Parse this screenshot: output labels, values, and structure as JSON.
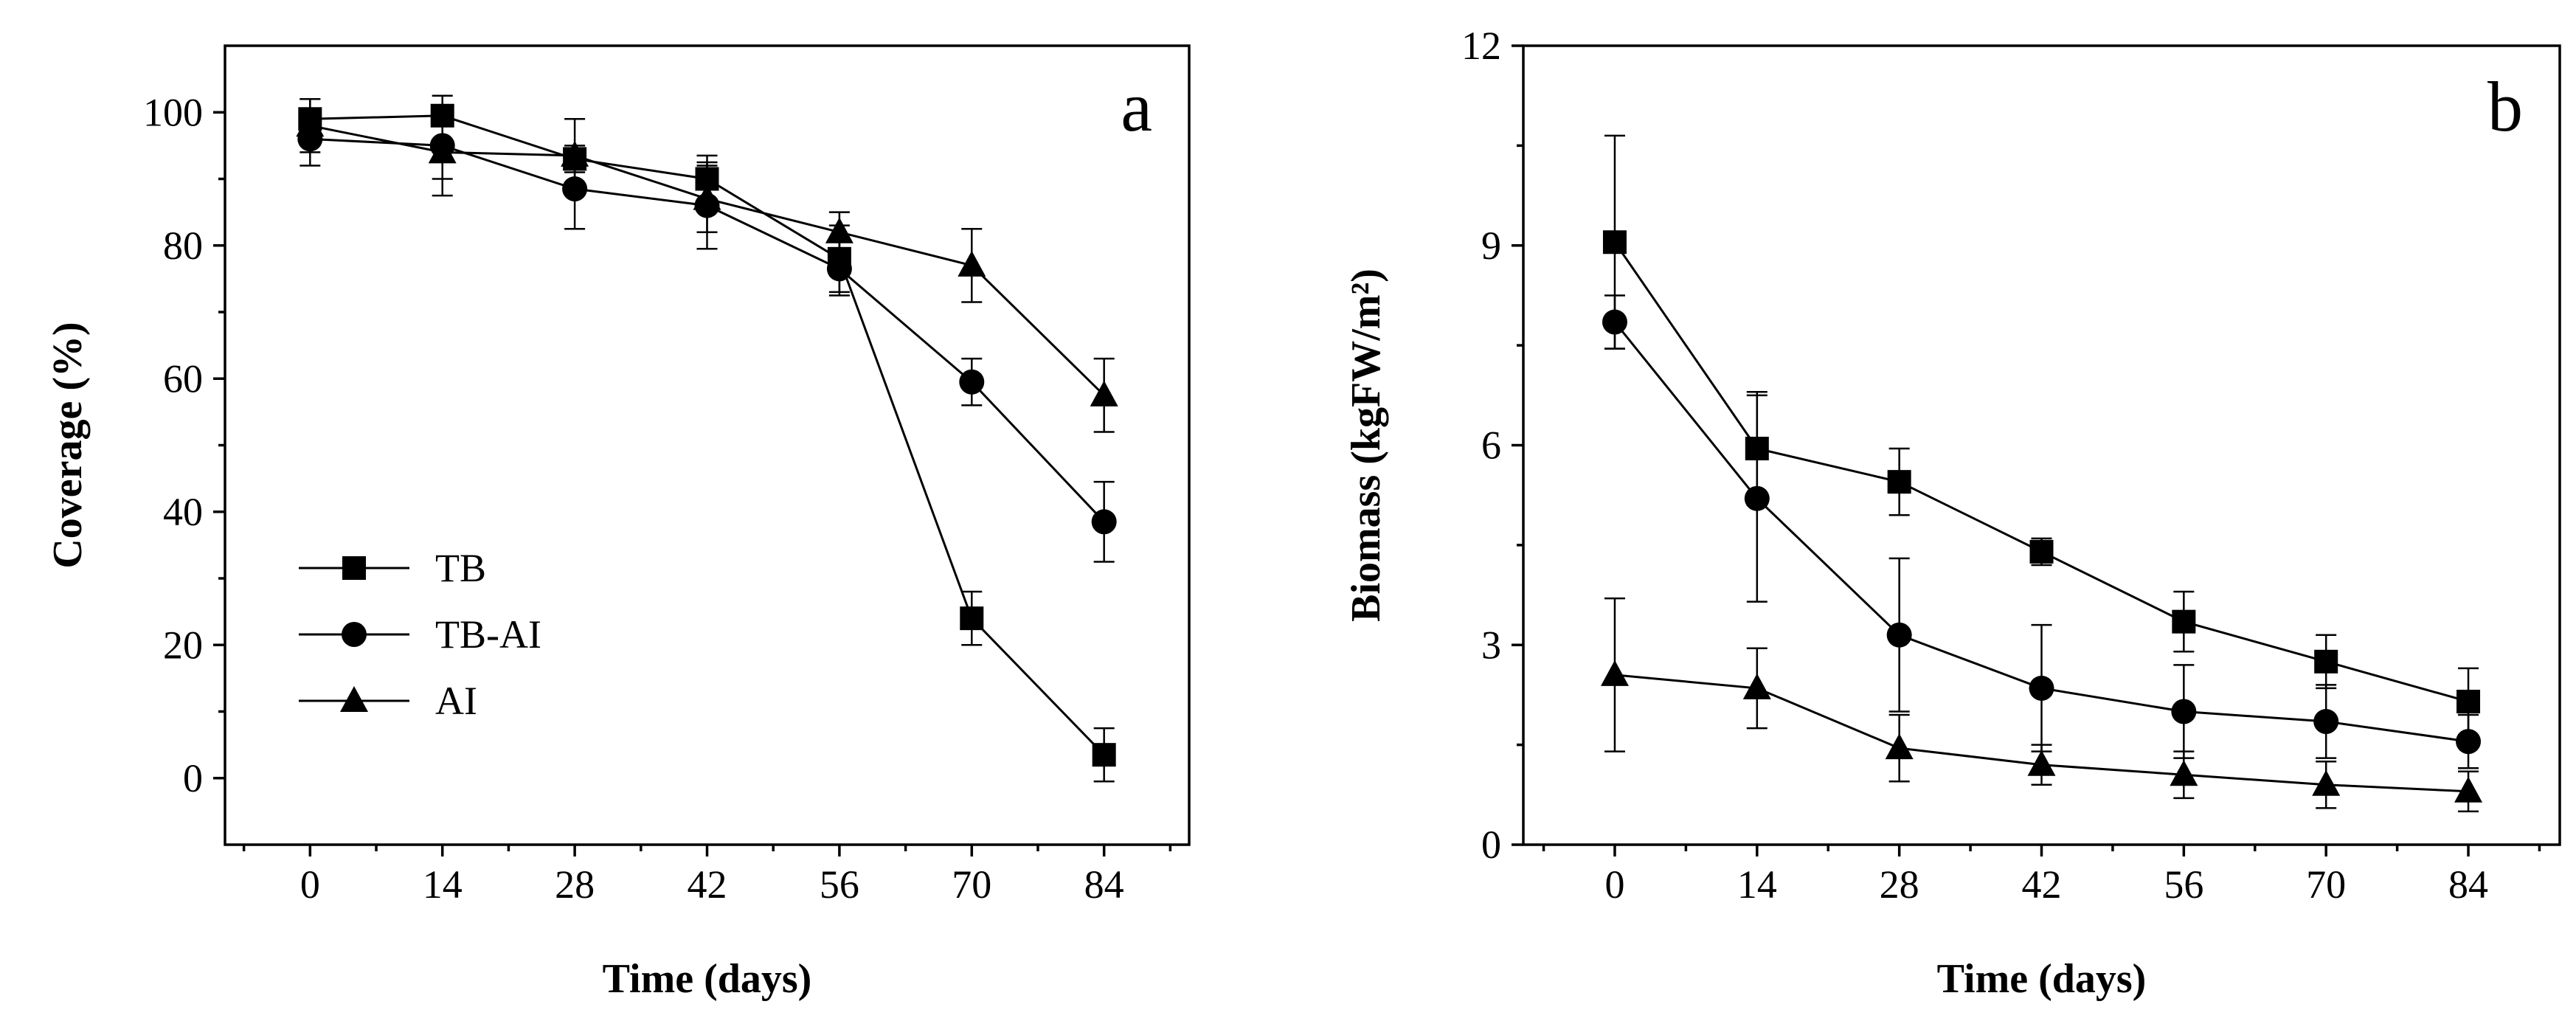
{
  "chart_data": [
    {
      "type": "line",
      "panel_label": "a",
      "xlabel": "Time (days)",
      "ylabel": "Coverage (%)",
      "xlim": [
        -9,
        93
      ],
      "ylim": [
        -10,
        110
      ],
      "xticks": [
        0,
        14,
        28,
        42,
        56,
        70,
        84
      ],
      "yticks": [
        0,
        20,
        40,
        60,
        80,
        100
      ],
      "x": [
        0,
        14,
        28,
        42,
        56,
        70,
        84
      ],
      "legend_position": "lower-left",
      "series": [
        {
          "name": "TB",
          "marker": "square",
          "values": [
            99,
            99.5,
            93,
            90,
            78,
            24,
            3.5
          ],
          "errors": [
            3,
            0,
            2,
            3.5,
            5,
            4,
            4
          ]
        },
        {
          "name": "TB-AI",
          "marker": "circle",
          "values": [
            96,
            95,
            88.5,
            86,
            76.5,
            59.5,
            38.5
          ],
          "errors": [
            4,
            7.5,
            6,
            6.5,
            4,
            3.5,
            6
          ]
        },
        {
          "name": "AI",
          "marker": "triangle",
          "values": [
            98,
            94,
            93.5,
            87,
            82,
            77,
            57.5
          ],
          "errors": [
            4,
            4,
            5.5,
            5,
            3,
            5.5,
            5.5
          ]
        }
      ]
    },
    {
      "type": "line",
      "panel_label": "b",
      "xlabel": "Time (days)",
      "ylabel": "Biomass (kgFW/m²)",
      "xlim": [
        -9,
        93
      ],
      "ylim": [
        0,
        12
      ],
      "xticks": [
        0,
        14,
        28,
        42,
        56,
        70,
        84
      ],
      "yticks": [
        0,
        3,
        6,
        9,
        12
      ],
      "x": [
        0,
        14,
        28,
        42,
        56,
        70,
        84
      ],
      "series": [
        {
          "name": "TB",
          "marker": "square",
          "values": [
            9.05,
            5.95,
            5.45,
            4.4,
            3.35,
            2.75,
            2.15
          ],
          "errors": [
            1.6,
            0.85,
            0.5,
            0.2,
            0.45,
            0.4,
            0.5
          ]
        },
        {
          "name": "TB-AI",
          "marker": "circle",
          "values": [
            7.85,
            5.2,
            3.15,
            2.35,
            2.0,
            1.85,
            1.55
          ],
          "errors": [
            0.4,
            1.55,
            1.15,
            0.95,
            0.7,
            0.55,
            0.4
          ]
        },
        {
          "name": "AI",
          "marker": "triangle",
          "values": [
            2.55,
            2.35,
            1.45,
            1.2,
            1.05,
            0.9,
            0.8
          ],
          "errors": [
            1.15,
            0.6,
            0.5,
            0.3,
            0.35,
            0.35,
            0.3
          ]
        }
      ]
    }
  ]
}
